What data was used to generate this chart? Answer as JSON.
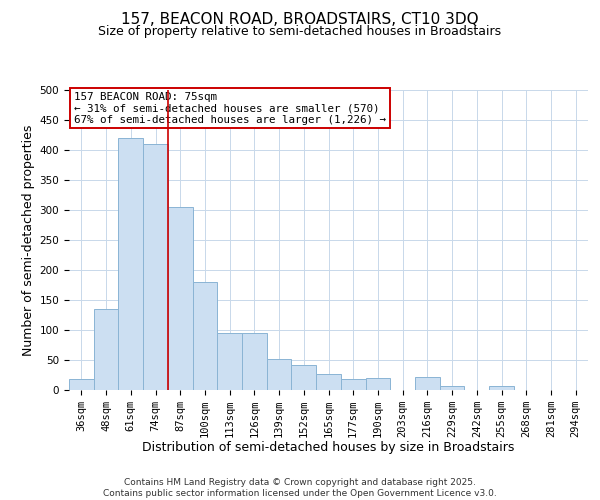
{
  "title": "157, BEACON ROAD, BROADSTAIRS, CT10 3DQ",
  "subtitle": "Size of property relative to semi-detached houses in Broadstairs",
  "xlabel": "Distribution of semi-detached houses by size in Broadstairs",
  "ylabel": "Number of semi-detached properties",
  "bar_labels": [
    "36sqm",
    "48sqm",
    "61sqm",
    "74sqm",
    "87sqm",
    "100sqm",
    "113sqm",
    "126sqm",
    "139sqm",
    "152sqm",
    "165sqm",
    "177sqm",
    "190sqm",
    "203sqm",
    "216sqm",
    "229sqm",
    "242sqm",
    "255sqm",
    "268sqm",
    "281sqm",
    "294sqm"
  ],
  "bar_values": [
    18,
    135,
    420,
    410,
    305,
    180,
    95,
    95,
    52,
    42,
    26,
    18,
    20,
    0,
    21,
    7,
    0,
    7,
    0,
    0,
    0
  ],
  "bar_color": "#ccdff2",
  "bar_edge_color": "#8ab4d4",
  "property_line_value": 3.5,
  "property_line_color": "#cc0000",
  "annotation_title": "157 BEACON ROAD: 75sqm",
  "annotation_line2": "← 31% of semi-detached houses are smaller (570)",
  "annotation_line3": "67% of semi-detached houses are larger (1,226) →",
  "annotation_box_color": "#cc0000",
  "ylim": [
    0,
    500
  ],
  "yticks": [
    0,
    50,
    100,
    150,
    200,
    250,
    300,
    350,
    400,
    450,
    500
  ],
  "footnote1": "Contains HM Land Registry data © Crown copyright and database right 2025.",
  "footnote2": "Contains public sector information licensed under the Open Government Licence v3.0.",
  "bg_color": "#ffffff",
  "grid_color": "#c8d8ea",
  "title_fontsize": 11,
  "subtitle_fontsize": 9,
  "axis_label_fontsize": 9,
  "tick_fontsize": 7.5,
  "annotation_fontsize": 7.8,
  "footnote_fontsize": 6.5
}
